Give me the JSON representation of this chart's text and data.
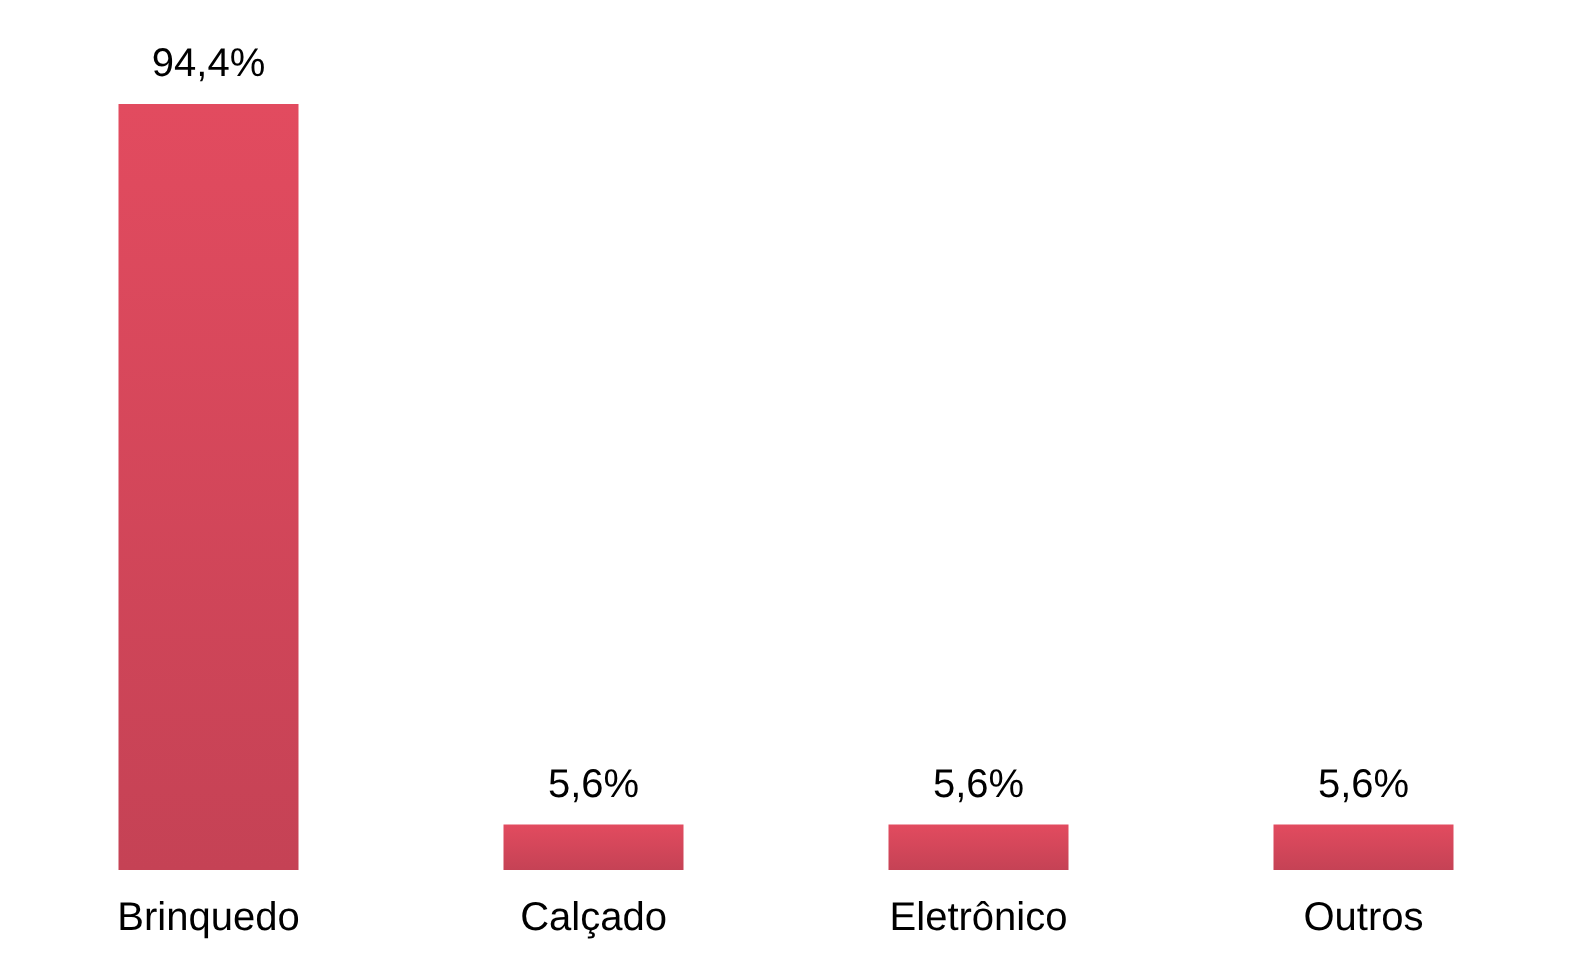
{
  "chart_data": {
    "type": "bar",
    "categories": [
      "Brinquedo",
      "Calçado",
      "Eletrônico",
      "Outros"
    ],
    "values": [
      94.4,
      5.6,
      5.6,
      5.6
    ],
    "value_labels": [
      "94,4%",
      "5,6%",
      "5,6%",
      "5,6%"
    ],
    "color": "#e24b5f"
  }
}
